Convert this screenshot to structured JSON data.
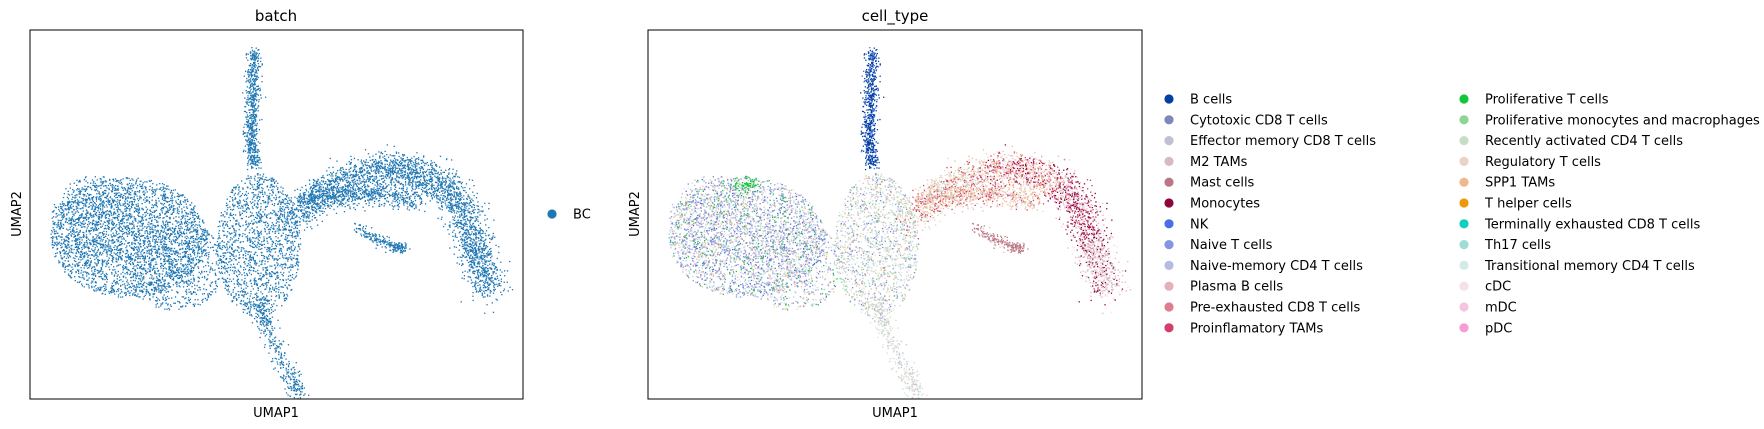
{
  "chart_data": [
    {
      "type": "scatter",
      "title": "batch",
      "xlabel": "UMAP1",
      "ylabel": "UMAP2",
      "xticks": "none",
      "yticks": "none",
      "grid": false,
      "legend_placement": "right-outside",
      "legend": [
        {
          "name": "BC",
          "color": "#1f77b4"
        }
      ]
    },
    {
      "type": "scatter",
      "title": "cell_type",
      "xlabel": "UMAP1",
      "ylabel": "UMAP2",
      "xticks": "none",
      "yticks": "none",
      "grid": false,
      "legend_placement": "right-outside-two-columns",
      "legend": [
        {
          "name": "B cells",
          "color": "#023fa5"
        },
        {
          "name": "Cytotoxic CD8 T cells",
          "color": "#7d87b9"
        },
        {
          "name": "Effector memory CD8 T cells",
          "color": "#bec1d4"
        },
        {
          "name": "M2 TAMs",
          "color": "#d6bcc0"
        },
        {
          "name": "Mast cells",
          "color": "#bb7784"
        },
        {
          "name": "Monocytes",
          "color": "#8e063b"
        },
        {
          "name": "NK",
          "color": "#4a6fe3"
        },
        {
          "name": "Naive T cells",
          "color": "#8595e1"
        },
        {
          "name": "Naive-memory CD4 T cells",
          "color": "#b5bbe3"
        },
        {
          "name": "Plasma B cells",
          "color": "#e6afb9"
        },
        {
          "name": "Pre-exhausted CD8 T cells",
          "color": "#e07b91"
        },
        {
          "name": "Proinflamatory TAMs",
          "color": "#d33f6a"
        },
        {
          "name": "Proliferative T cells",
          "color": "#11c638"
        },
        {
          "name": "Proliferative monocytes and macrophages",
          "color": "#8dd593"
        },
        {
          "name": "Recently activated CD4 T cells",
          "color": "#c6dec7"
        },
        {
          "name": "Regulatory T cells",
          "color": "#ead3c6"
        },
        {
          "name": "SPP1 TAMs",
          "color": "#f0b98d"
        },
        {
          "name": "T helper cells",
          "color": "#ef9708"
        },
        {
          "name": "Terminally exhausted CD8 T cells",
          "color": "#0fcfc0"
        },
        {
          "name": "Th17 cells",
          "color": "#9cded6"
        },
        {
          "name": "Transitional memory CD4 T cells",
          "color": "#d5eae7"
        },
        {
          "name": "cDC",
          "color": "#f3e1eb"
        },
        {
          "name": "mDC",
          "color": "#f6c4e1"
        },
        {
          "name": "pDC",
          "color": "#f79cd4"
        }
      ]
    }
  ]
}
